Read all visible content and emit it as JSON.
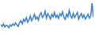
{
  "chart_data": {
    "type": "line",
    "categories": [
      null,
      null,
      null,
      null,
      null,
      null,
      null,
      null,
      null,
      null,
      null,
      null,
      null,
      null,
      null,
      null,
      null,
      null,
      null,
      null,
      null,
      null,
      null,
      null,
      null,
      null,
      null,
      null,
      null,
      null,
      null,
      null,
      null,
      null,
      null,
      null,
      null,
      null,
      null,
      null,
      null,
      null,
      null,
      null,
      null,
      null,
      null,
      null,
      null,
      null,
      null,
      null,
      null,
      null,
      null,
      null,
      null,
      null,
      null,
      null,
      null,
      null,
      null,
      null,
      null,
      null,
      null,
      null,
      null,
      null
    ],
    "values": [
      28,
      22,
      30,
      20,
      26,
      24,
      18,
      27,
      23,
      30,
      25,
      33,
      27,
      22,
      35,
      40,
      30,
      45,
      38,
      50,
      35,
      42,
      55,
      40,
      48,
      60,
      45,
      52,
      42,
      58,
      65,
      50,
      55,
      70,
      48,
      62,
      55,
      45,
      60,
      52,
      66,
      50,
      58,
      47,
      62,
      55,
      68,
      50,
      44,
      60,
      52,
      72,
      55,
      48,
      63,
      50,
      58,
      66,
      45,
      55,
      62,
      50,
      58,
      45,
      52,
      60,
      48,
      55,
      95,
      50
    ],
    "color": "#3d7fc6",
    "ylim": [
      0,
      100
    ],
    "grid": false,
    "tick_labels": false
  }
}
